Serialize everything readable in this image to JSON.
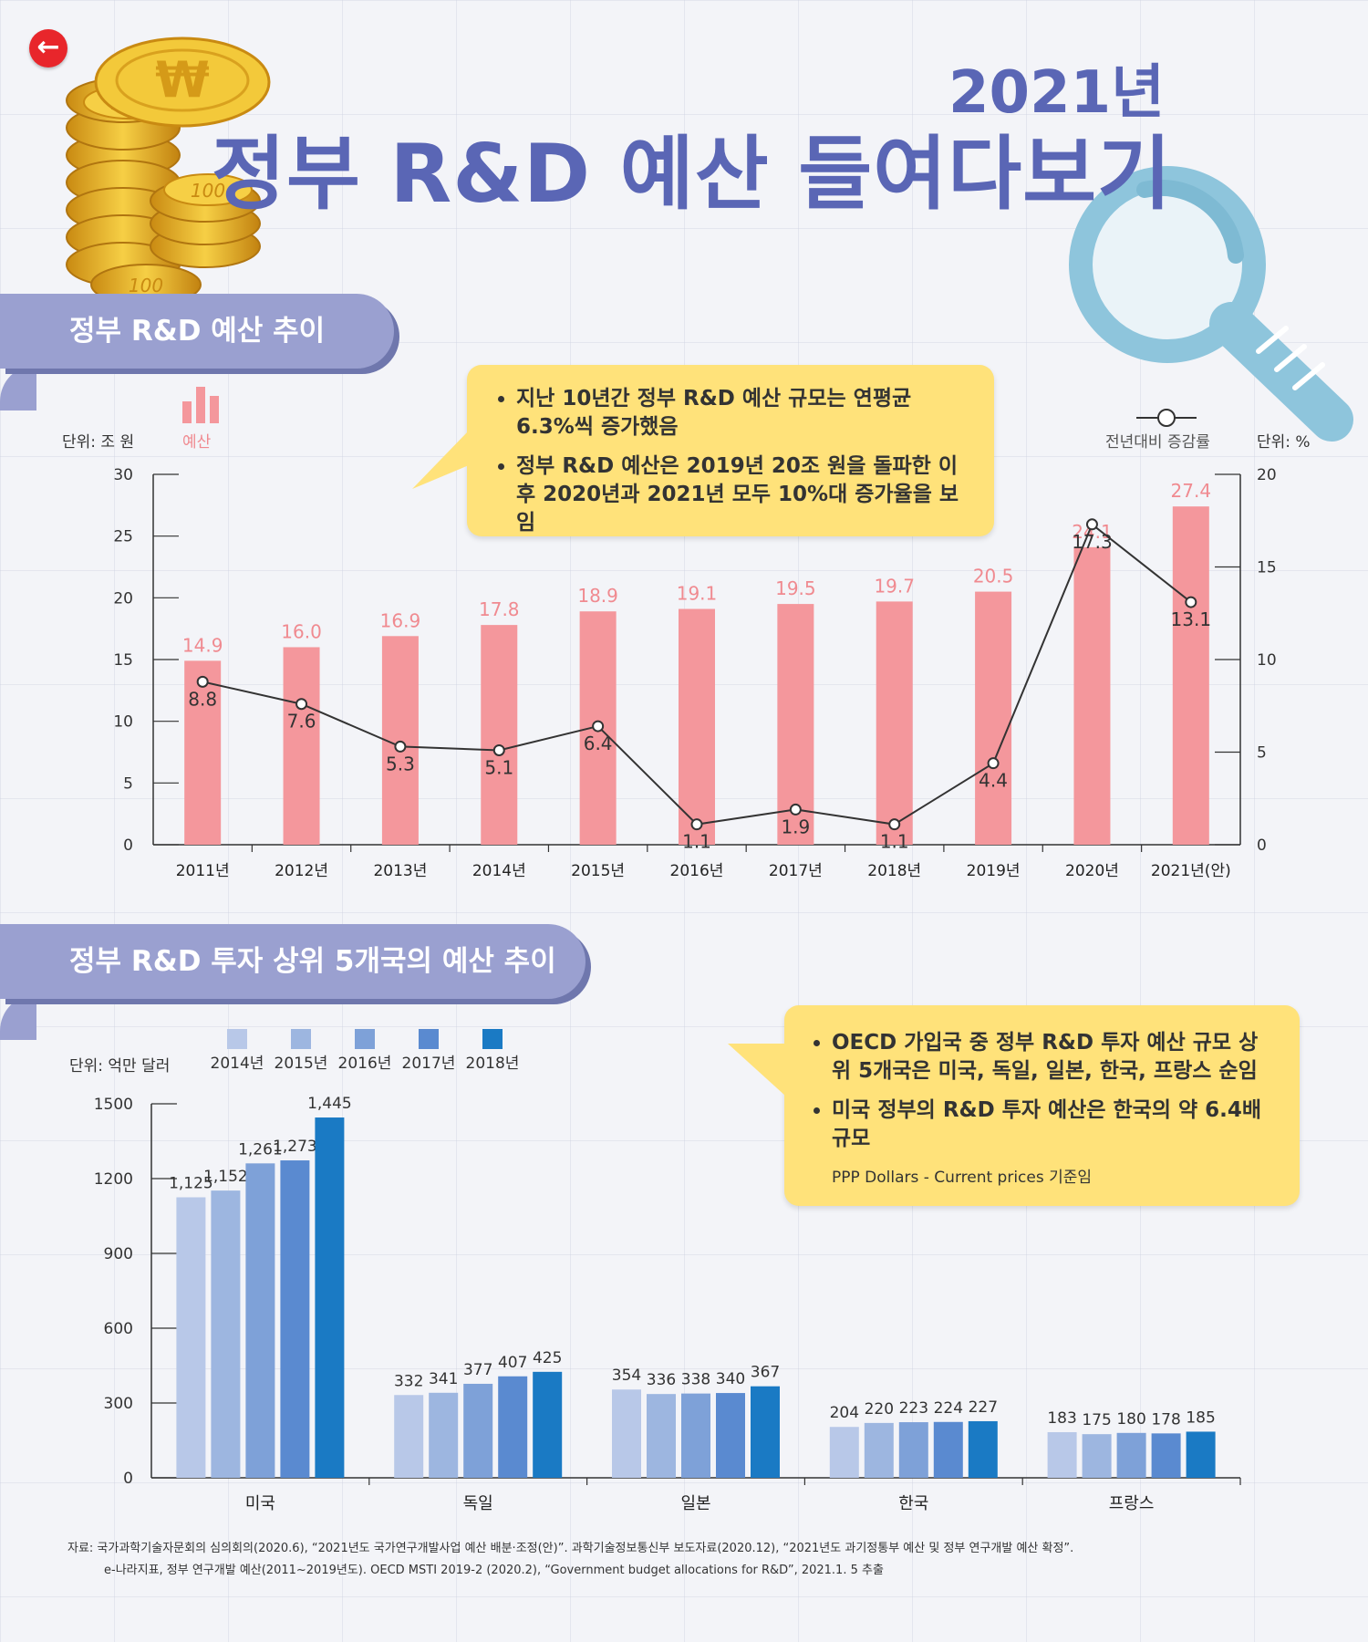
{
  "header": {
    "back_icon": "left-arrow-icon",
    "title_year": "2021년",
    "title_main": "정부 R&D 예산 들여다보기",
    "decor_icons": [
      "coin-stack-icon",
      "magnifier-icon"
    ],
    "coin_text": "100",
    "coin_symbol": "₩"
  },
  "section1": {
    "tab_label": "정부 R&D 예산 추이",
    "unit_left": "단위: 조 원",
    "unit_right": "단위: %",
    "legend_bar_label": "예산",
    "legend_line_label": "전년대비 증감률",
    "callout": [
      "지난 10년간 정부 R&D 예산 규모는 연평균 6.3%씩 증가했음",
      "정부 R&D 예산은 2019년 20조 원을 돌파한 이후 2020년과 2021년 모두 10%대 증가율을 보임"
    ]
  },
  "section2": {
    "tab_label": "정부 R&D 투자 상위 5개국의 예산 추이",
    "unit_left": "단위: 억만 달러",
    "callout": [
      "OECD 가입국 중 정부 R&D 투자 예산 규모 상위 5개국은 미국, 독일, 일본, 한국, 프랑스 순임",
      "미국 정부의 R&D 투자 예산은 한국의 약 6.4배 규모"
    ],
    "callout_note": "PPP Dollars - Current prices 기준임"
  },
  "footnote": {
    "line1": "자료: 국가과학기술자문회의 심의회의(2020.6), “2021년도 국가연구개발사업 예산 배분·조정(안)”. 과학기술정보통신부 보도자료(2020.12), “2021년도 과기정통부 예산 및 정부 연구개발 예산 확정”.",
    "line2": "e-나라지표, 정부 연구개발 예산(2011~2019년도). OECD MSTI 2019-2 (2020.2), “Government budget allocations for R&D”, 2021.1. 5 추출"
  },
  "chart_data": [
    {
      "type": "bar",
      "categories": [
        "2011년",
        "2012년",
        "2013년",
        "2014년",
        "2015년",
        "2016년",
        "2017년",
        "2018년",
        "2019년",
        "2020년",
        "2021년(안)"
      ],
      "series": [
        {
          "name": "예산",
          "type": "bar",
          "axis": "left",
          "color": "#f4979c",
          "label_color": "#f08a90",
          "values": [
            14.9,
            16.0,
            16.9,
            17.8,
            18.9,
            19.1,
            19.5,
            19.7,
            20.5,
            24.1,
            27.4
          ],
          "labels": [
            "14.9",
            "16.0",
            "16.9",
            "17.8",
            "18.9",
            "19.1",
            "19.5",
            "19.7",
            "20.5",
            "24.1",
            "27.4"
          ]
        },
        {
          "name": "전년대비 증감률",
          "type": "line",
          "axis": "right",
          "color": "#333333",
          "values": [
            8.8,
            7.6,
            5.3,
            5.1,
            6.4,
            1.1,
            1.9,
            1.1,
            4.4,
            17.3,
            13.1
          ],
          "labels": [
            "8.8",
            "7.6",
            "5.3",
            "5.1",
            "6.4",
            "1.1",
            "1.9",
            "1.1",
            "4.4",
            "17.3",
            "13.1"
          ]
        }
      ],
      "ylim_left": [
        0,
        30
      ],
      "yticks_left": [
        "0",
        "5",
        "10",
        "15",
        "20",
        "25",
        "30"
      ],
      "ylim_right": [
        0,
        20
      ],
      "yticks_right": [
        "0",
        "5",
        "10",
        "15",
        "20"
      ],
      "grid": false,
      "legend": "top"
    },
    {
      "type": "bar",
      "categories": [
        "미국",
        "독일",
        "일본",
        "한국",
        "프랑스"
      ],
      "series": [
        {
          "name": "2014년",
          "color": "#b8c8e8",
          "values": [
            1125,
            332,
            354,
            204,
            183
          ],
          "labels": [
            "1,125",
            "332",
            "354",
            "204",
            "183"
          ]
        },
        {
          "name": "2015년",
          "color": "#9db6e0",
          "values": [
            1152,
            341,
            336,
            220,
            175
          ],
          "labels": [
            "1,152",
            "341",
            "336",
            "220",
            "175"
          ]
        },
        {
          "name": "2016년",
          "color": "#7ea1d8",
          "values": [
            1261,
            377,
            338,
            223,
            180
          ],
          "labels": [
            "1,261",
            "377",
            "338",
            "223",
            "180"
          ]
        },
        {
          "name": "2017년",
          "color": "#5a8ad0",
          "values": [
            1273,
            407,
            340,
            224,
            178
          ],
          "labels": [
            "1,273",
            "407",
            "340",
            "224",
            "178"
          ]
        },
        {
          "name": "2018년",
          "color": "#1a7ac4",
          "values": [
            1445,
            425,
            367,
            227,
            185
          ],
          "labels": [
            "1,445",
            "425",
            "367",
            "227",
            "185"
          ]
        }
      ],
      "ylim": [
        0,
        1500
      ],
      "yticks": [
        "0",
        "300",
        "600",
        "900",
        "1200",
        "1500"
      ],
      "grid": false,
      "legend": "top-left"
    }
  ]
}
